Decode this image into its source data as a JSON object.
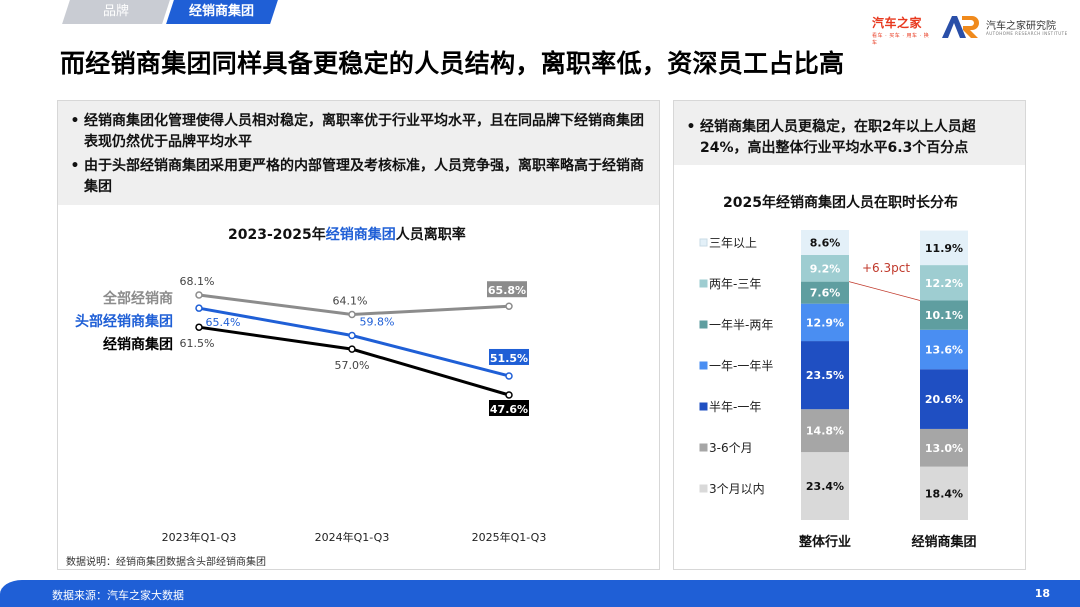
{
  "tabs": {
    "brand": "品牌",
    "dealer": "经销商集团"
  },
  "logos": {
    "autohome": "汽车之家",
    "autohome_sub": "看车 · 买车 · 用车 · 换车",
    "research_mark": "AR",
    "research": "汽车之家研究院",
    "research_sub": "AUTOHOME RESEARCH INSTITUTE"
  },
  "page_title": "而经销商集团同样具备更稳定的人员结构，离职率低，资深员工占比高",
  "left_notes": [
    "经销商集团化管理使得人员相对稳定，离职率优于行业平均水平，且在同品牌下经销商集团表现仍然优于品牌平均水平",
    "由于头部经销商集团采用更严格的内部管理及考核标准，人员竞争强，离职率略高于经销商集团"
  ],
  "right_notes": [
    "经销商集团人员更稳定，在职2年以上人员超24%，高出整体行业平均水平6.3个百分点"
  ],
  "line_title": {
    "part1": "2023-2025年",
    "part2": "经销商集团",
    "part3": "人员离职率"
  },
  "bar_title": "2025年经销商集团人员在职时长分布",
  "data_note": "数据说明：经销商集团数据含头部经销商集团",
  "footer": {
    "source": "数据来源：汽车之家大数据",
    "page": "18"
  },
  "colors": {
    "accent": "#1f5fd6",
    "gray_line": "#8c8c8c",
    "black_line": "#000000",
    "note_bg": "#efefef",
    "footer": "#1f5fd6",
    "annotation": "#c0392b"
  },
  "chart_data": [
    {
      "type": "line",
      "categories": [
        "2023年Q1-Q3",
        "2024年Q1-Q3",
        "2025年Q1-Q3"
      ],
      "series": [
        {
          "name": "全部经销商",
          "values": [
            68.1,
            64.1,
            65.8
          ],
          "labels": [
            "68.1%",
            "64.1%",
            "65.8%"
          ],
          "color": "#8c8c8c"
        },
        {
          "name": "头部经销商集团",
          "values": [
            65.4,
            59.8,
            51.5
          ],
          "labels": [
            "65.4%",
            "59.8%",
            "51.5%"
          ],
          "color": "#1f5fd6"
        },
        {
          "name": "经销商集团",
          "values": [
            61.5,
            57.0,
            47.6
          ],
          "labels": [
            "61.5%",
            "57.0%",
            "47.6%"
          ],
          "color": "#000000"
        }
      ]
    },
    {
      "type": "bar",
      "stacked": true,
      "percent": true,
      "categories": [
        "整体行业",
        "经销商集团"
      ],
      "series": [
        {
          "name": "3个月以内",
          "values": [
            23.4,
            18.4
          ],
          "labels": [
            "23.4%",
            "18.4%"
          ],
          "color": "#d9d9d9",
          "text": "#111111"
        },
        {
          "name": "3-6个月",
          "values": [
            14.8,
            13.0
          ],
          "labels": [
            "14.8%",
            "13.0%"
          ],
          "color": "#a6a6a6",
          "text": "#ffffff"
        },
        {
          "name": "半年-一年",
          "values": [
            23.5,
            20.6
          ],
          "labels": [
            "23.5%",
            "20.6%"
          ],
          "color": "#1f4fc2",
          "text": "#ffffff"
        },
        {
          "name": "一年-一年半",
          "values": [
            12.9,
            13.6
          ],
          "labels": [
            "12.9%",
            "13.6%"
          ],
          "color": "#4a8ef2",
          "text": "#ffffff"
        },
        {
          "name": "一年半-两年",
          "values": [
            7.6,
            10.1
          ],
          "labels": [
            "7.6%",
            "10.1%"
          ],
          "color": "#5f9ea0",
          "text": "#ffffff"
        },
        {
          "name": "两年-三年",
          "values": [
            9.2,
            12.2
          ],
          "labels": [
            "9.2%",
            "12.2%"
          ],
          "color": "#9ecdd1",
          "text": "#ffffff"
        },
        {
          "name": "三年以上",
          "values": [
            8.6,
            11.9
          ],
          "labels": [
            "8.6%",
            "11.9%"
          ],
          "color": "#e3f0f8",
          "text": "#111111"
        }
      ],
      "annotation": "+6.3pct"
    }
  ]
}
